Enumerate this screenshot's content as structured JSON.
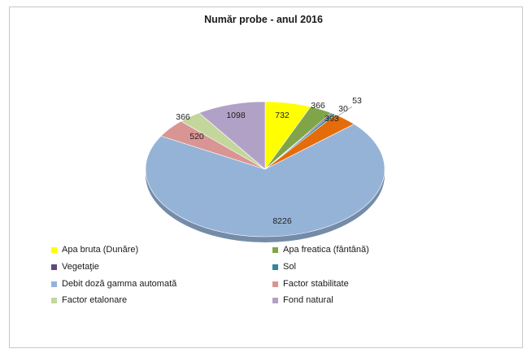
{
  "chart_data": {
    "type": "pie",
    "title": "Număr probe - anul  2016",
    "slices": [
      {
        "label": "Apa bruta (Dunăre)",
        "value": 732,
        "color": "#ffff00"
      },
      {
        "label": "Apa freatica (fântână)",
        "value": 366,
        "color": "#7fa548"
      },
      {
        "label": "Vegetaţie",
        "value": 30,
        "color": "#604a7b"
      },
      {
        "label": "Sol",
        "value": 53,
        "color": "#31859c"
      },
      {
        "label": "",
        "value": 393,
        "color": "#e46c0a"
      },
      {
        "label": "Debit doză gamma automată",
        "value": 8226,
        "color": "#95b3d7"
      },
      {
        "label": "Factor stabilitate",
        "value": 520,
        "color": "#d99594"
      },
      {
        "label": "Factor etalonare",
        "value": 366,
        "color": "#c3d69b"
      },
      {
        "label": "Fond natural",
        "value": 1098,
        "color": "#b2a1c7"
      }
    ],
    "legend_position": "bottom"
  }
}
